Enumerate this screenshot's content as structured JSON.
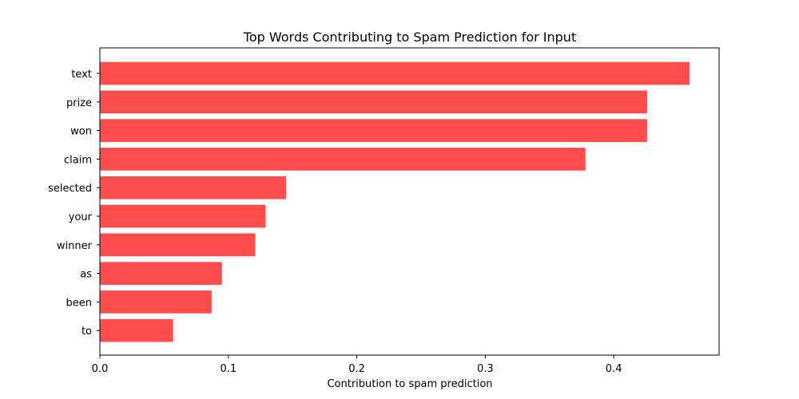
{
  "chart_data": {
    "type": "bar",
    "orientation": "horizontal",
    "title": "Top Words Contributing to Spam Prediction for Input",
    "xlabel": "Contribution to spam prediction",
    "ylabel": "",
    "categories": [
      "text",
      "prize",
      "won",
      "claim",
      "selected",
      "your",
      "winner",
      "as",
      "been",
      "to"
    ],
    "values": [
      0.459,
      0.426,
      0.426,
      0.378,
      0.145,
      0.129,
      0.121,
      0.095,
      0.087,
      0.057
    ],
    "xlim": [
      0,
      0.482
    ],
    "xticks": [
      "0.0",
      "0.1",
      "0.2",
      "0.3",
      "0.4"
    ],
    "bar_color": "#ff4d4d",
    "grid": false,
    "legend": "none"
  }
}
